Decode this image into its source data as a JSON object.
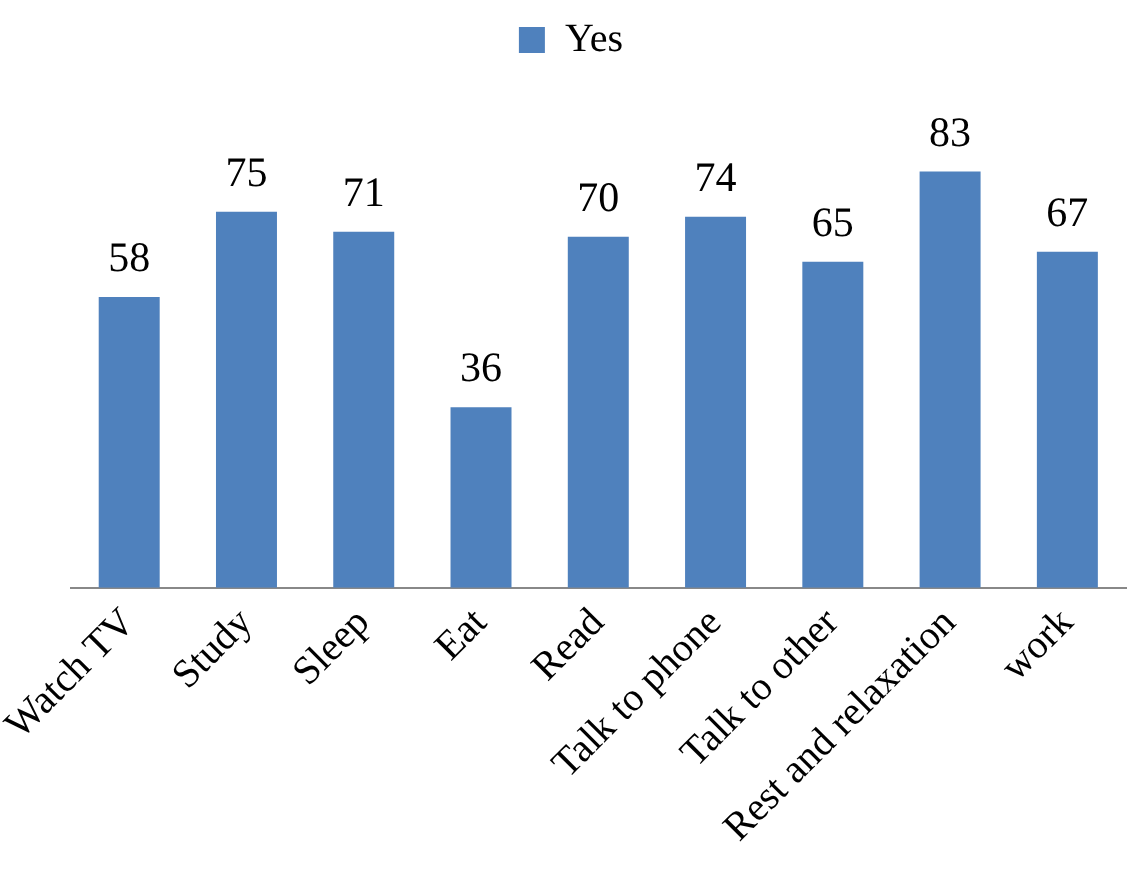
{
  "chart_data": {
    "type": "bar",
    "categories": [
      "Watch TV",
      "Study",
      "Sleep",
      "Eat",
      "Read",
      "Talk to phone",
      "Talk to other",
      "Rest and relaxation",
      "work"
    ],
    "series": [
      {
        "name": "Yes",
        "color": "#4f81bd",
        "values": [
          58,
          75,
          71,
          36,
          70,
          74,
          65,
          83,
          67
        ]
      }
    ],
    "data_labels": true,
    "legend": "top",
    "grid": false
  }
}
